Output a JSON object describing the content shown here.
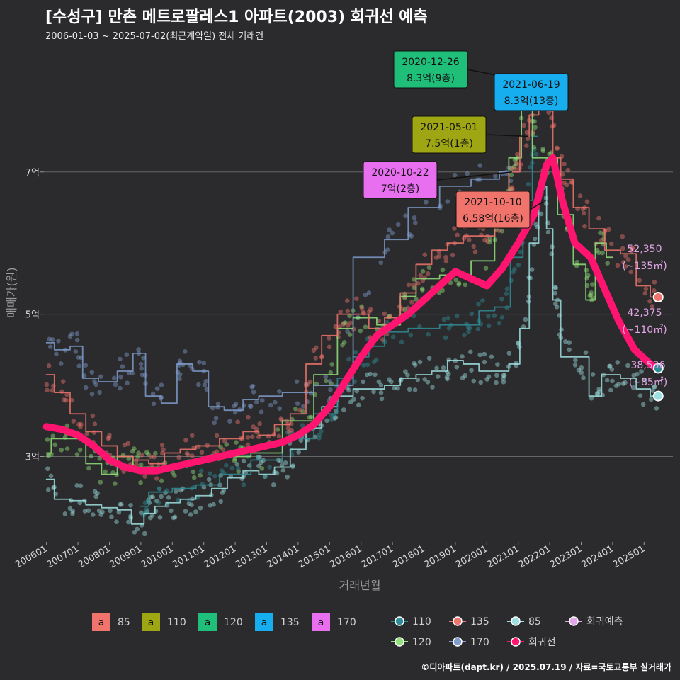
{
  "title": "[수성구] 만촌 메트로팔레스1 아파트(2003) 회귀선 예측",
  "subtitle": "2006-01-03 ~ 2025-07-02(최근계약일) 전체 거래건",
  "credit": "©디아파트(dapt.kr) / 2025.07.19 / 자료=국토교통부 실거래가",
  "chart_data": {
    "type": "line",
    "xlabel": "거래년월",
    "ylabel": "매매가(원)",
    "x_range": [
      "2005-12",
      "2025-12"
    ],
    "ylim": [
      1.8,
      8.8
    ],
    "y_ticks": [
      {
        "value": 3,
        "label": "3억"
      },
      {
        "value": 5,
        "label": "5억"
      },
      {
        "value": 7,
        "label": "7억"
      }
    ],
    "x_ticks": [
      "200601",
      "200701",
      "200801",
      "200901",
      "201001",
      "201101",
      "201201",
      "201301",
      "201401",
      "201501",
      "201601",
      "201701",
      "201801",
      "201901",
      "202001",
      "202101",
      "202201",
      "202301",
      "202401",
      "202501"
    ],
    "grid": true,
    "colors": {
      "85": "#9ee0e0",
      "110": "#2e8d96",
      "120": "#92e27a",
      "135": "#f0746c",
      "170": "#7f9ccc",
      "regression": "#ff1470",
      "prediction": "#e3a6e8"
    },
    "series": [
      {
        "name": "85",
        "points": [
          [
            2006.0,
            2.68
          ],
          [
            2006.5,
            2.4
          ],
          [
            2007.0,
            2.38
          ],
          [
            2007.5,
            2.32
          ],
          [
            2008.0,
            2.28
          ],
          [
            2008.5,
            2.25
          ],
          [
            2008.9,
            2.05
          ],
          [
            2009.3,
            2.2
          ],
          [
            2009.6,
            2.3
          ],
          [
            2010.0,
            2.35
          ],
          [
            2010.5,
            2.4
          ],
          [
            2011.0,
            2.45
          ],
          [
            2011.5,
            2.55
          ],
          [
            2012.0,
            2.7
          ],
          [
            2012.5,
            2.8
          ],
          [
            2013.0,
            2.75
          ],
          [
            2013.5,
            2.85
          ],
          [
            2014.0,
            3.1
          ],
          [
            2014.5,
            3.4
          ],
          [
            2015.0,
            3.7
          ],
          [
            2015.5,
            3.85
          ],
          [
            2016.0,
            3.95
          ],
          [
            2016.5,
            3.95
          ],
          [
            2017.0,
            4.0
          ],
          [
            2017.5,
            4.1
          ],
          [
            2018.0,
            4.15
          ],
          [
            2018.5,
            4.2
          ],
          [
            2019.0,
            4.35
          ],
          [
            2019.5,
            4.3
          ],
          [
            2020.0,
            4.2
          ],
          [
            2020.5,
            4.2
          ],
          [
            2020.9,
            4.3
          ],
          [
            2021.2,
            4.8
          ],
          [
            2021.5,
            6.0
          ],
          [
            2021.8,
            6.8
          ],
          [
            2022.0,
            6.2
          ],
          [
            2022.2,
            5.2
          ],
          [
            2022.5,
            4.4
          ],
          [
            2023.0,
            4.4
          ],
          [
            2023.5,
            3.85
          ],
          [
            2023.8,
            4.15
          ],
          [
            2024.0,
            4.15
          ],
          [
            2024.5,
            4.1
          ],
          [
            2025.0,
            3.95
          ],
          [
            2025.4,
            3.85
          ]
        ]
      },
      {
        "name": "110",
        "points": [
          [
            2009.0,
            2.3
          ],
          [
            2009.5,
            2.5
          ],
          [
            2010.5,
            2.55
          ],
          [
            2011.0,
            2.6
          ],
          [
            2012.0,
            2.75
          ],
          [
            2013.0,
            2.95
          ],
          [
            2014.0,
            3.25
          ],
          [
            2015.0,
            3.6
          ],
          [
            2015.5,
            4.1
          ],
          [
            2016.0,
            4.4
          ],
          [
            2016.5,
            4.55
          ],
          [
            2017.0,
            4.75
          ],
          [
            2018.0,
            4.8
          ],
          [
            2019.0,
            4.85
          ],
          [
            2019.5,
            4.85
          ],
          [
            2020.0,
            5.05
          ],
          [
            2020.5,
            5.1
          ],
          [
            2021.0,
            5.8
          ],
          [
            2021.3,
            6.6
          ],
          [
            2021.6,
            7.5
          ]
        ]
      },
      {
        "name": "120",
        "points": [
          [
            2006.0,
            3.05
          ],
          [
            2006.3,
            3.25
          ],
          [
            2007.0,
            3.25
          ],
          [
            2007.5,
            2.9
          ],
          [
            2008.0,
            2.75
          ],
          [
            2008.5,
            3.0
          ],
          [
            2009.0,
            2.85
          ],
          [
            2010.0,
            2.85
          ],
          [
            2011.0,
            2.95
          ],
          [
            2012.0,
            3.0
          ],
          [
            2013.0,
            3.05
          ],
          [
            2014.0,
            3.5
          ],
          [
            2015.0,
            4.15
          ],
          [
            2015.5,
            4.8
          ],
          [
            2016.0,
            4.95
          ],
          [
            2017.0,
            4.85
          ],
          [
            2017.5,
            5.25
          ],
          [
            2018.0,
            5.5
          ],
          [
            2019.0,
            5.55
          ],
          [
            2020.0,
            5.75
          ],
          [
            2020.5,
            6.3
          ],
          [
            2020.9,
            7.2
          ],
          [
            2021.3,
            8.3
          ],
          [
            2021.6,
            7.2
          ],
          [
            2022.0,
            7.2
          ],
          [
            2022.5,
            6.4
          ],
          [
            2023.0,
            5.7
          ],
          [
            2023.3,
            5.2
          ],
          [
            2023.6,
            6.0
          ],
          [
            2024.0,
            5.8
          ]
        ]
      },
      {
        "name": "135",
        "points": [
          [
            2006.0,
            4.15
          ],
          [
            2006.5,
            3.9
          ],
          [
            2007.0,
            3.6
          ],
          [
            2007.5,
            3.35
          ],
          [
            2008.0,
            3.15
          ],
          [
            2008.5,
            3.0
          ],
          [
            2009.0,
            2.95
          ],
          [
            2009.5,
            2.9
          ],
          [
            2010.0,
            3.05
          ],
          [
            2010.5,
            3.1
          ],
          [
            2011.0,
            3.15
          ],
          [
            2012.0,
            3.25
          ],
          [
            2012.5,
            3.35
          ],
          [
            2013.0,
            3.3
          ],
          [
            2013.5,
            3.45
          ],
          [
            2014.0,
            3.6
          ],
          [
            2014.5,
            4.3
          ],
          [
            2015.0,
            4.7
          ],
          [
            2015.5,
            5.0
          ],
          [
            2016.0,
            5.0
          ],
          [
            2016.5,
            4.8
          ],
          [
            2017.0,
            4.95
          ],
          [
            2017.5,
            5.3
          ],
          [
            2018.0,
            5.7
          ],
          [
            2018.5,
            5.9
          ],
          [
            2019.0,
            6.0
          ],
          [
            2019.5,
            6.1
          ],
          [
            2020.0,
            6.1
          ],
          [
            2020.5,
            6.4
          ],
          [
            2020.9,
            7.0
          ],
          [
            2021.2,
            7.5
          ],
          [
            2021.5,
            7.8
          ],
          [
            2021.8,
            8.3
          ],
          [
            2022.0,
            8.0
          ],
          [
            2022.2,
            7.2
          ],
          [
            2022.5,
            6.9
          ],
          [
            2023.0,
            6.5
          ],
          [
            2023.5,
            6.2
          ],
          [
            2024.0,
            5.9
          ],
          [
            2024.5,
            5.85
          ],
          [
            2025.0,
            5.4
          ],
          [
            2025.4,
            5.24
          ]
        ]
      },
      {
        "name": "170",
        "points": [
          [
            2006.0,
            4.6
          ],
          [
            2006.5,
            4.5
          ],
          [
            2007.0,
            4.55
          ],
          [
            2007.3,
            4.1
          ],
          [
            2008.0,
            4.05
          ],
          [
            2008.5,
            4.2
          ],
          [
            2009.0,
            4.45
          ],
          [
            2009.3,
            3.85
          ],
          [
            2010.0,
            3.75
          ],
          [
            2010.3,
            4.3
          ],
          [
            2011.0,
            4.2
          ],
          [
            2011.3,
            3.7
          ],
          [
            2012.0,
            3.65
          ],
          [
            2012.5,
            3.8
          ],
          [
            2013.0,
            3.85
          ],
          [
            2014.0,
            3.9
          ],
          [
            2015.0,
            4.0
          ],
          [
            2016.5,
            5.8
          ],
          [
            2017.0,
            6.05
          ],
          [
            2018.0,
            6.5
          ],
          [
            2019.0,
            6.8
          ],
          [
            2020.0,
            6.9
          ],
          [
            2020.8,
            7.0
          ]
        ]
      },
      {
        "name": "회귀선",
        "points": [
          [
            2006.0,
            3.42
          ],
          [
            2006.5,
            3.38
          ],
          [
            2007.0,
            3.3
          ],
          [
            2007.5,
            3.15
          ],
          [
            2008.0,
            2.95
          ],
          [
            2008.5,
            2.85
          ],
          [
            2009.0,
            2.8
          ],
          [
            2009.5,
            2.8
          ],
          [
            2010.0,
            2.85
          ],
          [
            2010.5,
            2.9
          ],
          [
            2011.0,
            2.95
          ],
          [
            2011.5,
            3.0
          ],
          [
            2012.0,
            3.05
          ],
          [
            2012.5,
            3.1
          ],
          [
            2013.0,
            3.15
          ],
          [
            2013.5,
            3.2
          ],
          [
            2014.0,
            3.3
          ],
          [
            2014.5,
            3.45
          ],
          [
            2015.0,
            3.7
          ],
          [
            2015.5,
            4.05
          ],
          [
            2016.0,
            4.4
          ],
          [
            2016.5,
            4.7
          ],
          [
            2017.0,
            4.85
          ],
          [
            2017.5,
            5.0
          ],
          [
            2018.0,
            5.2
          ],
          [
            2018.5,
            5.4
          ],
          [
            2019.0,
            5.6
          ],
          [
            2019.5,
            5.5
          ],
          [
            2020.0,
            5.4
          ],
          [
            2020.5,
            5.65
          ],
          [
            2021.0,
            6.0
          ],
          [
            2021.5,
            6.4
          ],
          [
            2021.9,
            7.1
          ],
          [
            2022.1,
            7.2
          ],
          [
            2022.4,
            6.6
          ],
          [
            2022.8,
            6.0
          ],
          [
            2023.3,
            5.8
          ],
          [
            2023.8,
            5.3
          ],
          [
            2024.2,
            4.9
          ],
          [
            2024.7,
            4.5
          ],
          [
            2025.2,
            4.3
          ],
          [
            2025.4,
            4.24
          ]
        ]
      }
    ],
    "annotations": [
      {
        "date": "2020-12-26",
        "price": "8.3억(9층)",
        "color": "#1fbf7a",
        "target": [
          2021.0,
          8.3
        ]
      },
      {
        "date": "2021-06-19",
        "price": "8.3억(13층)",
        "color": "#17aef0",
        "target": [
          2021.47,
          8.3
        ]
      },
      {
        "date": "2021-05-01",
        "price": "7.5억(1층)",
        "color": "#9fa614",
        "target": [
          2021.33,
          7.5
        ]
      },
      {
        "date": "2020-10-22",
        "price": "7억(2층)",
        "color": "#e86ff0",
        "target": [
          2020.8,
          7.0
        ]
      },
      {
        "date": "2021-10-10",
        "price": "6.58억(16층)",
        "color": "#f0746c",
        "target": [
          2021.78,
          6.58
        ]
      }
    ],
    "predictions": [
      {
        "value": "52,350",
        "size": "(~135㎡)",
        "price": 5.24,
        "color": "#f0746c"
      },
      {
        "value": "42,375",
        "size": "(~110㎡)",
        "price": 4.24,
        "color": "#2e8d96"
      },
      {
        "value": "38,536",
        "size": "(~85㎡)",
        "price": 3.85,
        "color": "#9ee0e0"
      }
    ],
    "legend": {
      "labels": [
        {
          "name": "85",
          "glyph": "a",
          "color": "#f0746c"
        },
        {
          "name": "110",
          "glyph": "a",
          "color": "#9fa614"
        },
        {
          "name": "120",
          "glyph": "a",
          "color": "#1fbf7a"
        },
        {
          "name": "135",
          "glyph": "a",
          "color": "#17aef0"
        },
        {
          "name": "170",
          "glyph": "a",
          "color": "#e86ff0"
        }
      ],
      "lines": [
        {
          "name": "110",
          "color": "#2e8d96"
        },
        {
          "name": "135",
          "color": "#f0746c"
        },
        {
          "name": "85",
          "color": "#9ee0e0"
        },
        {
          "name": "회귀예측",
          "color": "#e3a6e8"
        },
        {
          "name": "120",
          "color": "#92e27a"
        },
        {
          "name": "170",
          "color": "#7f9ccc"
        },
        {
          "name": "회귀선",
          "color": "#ff1470"
        }
      ]
    }
  }
}
